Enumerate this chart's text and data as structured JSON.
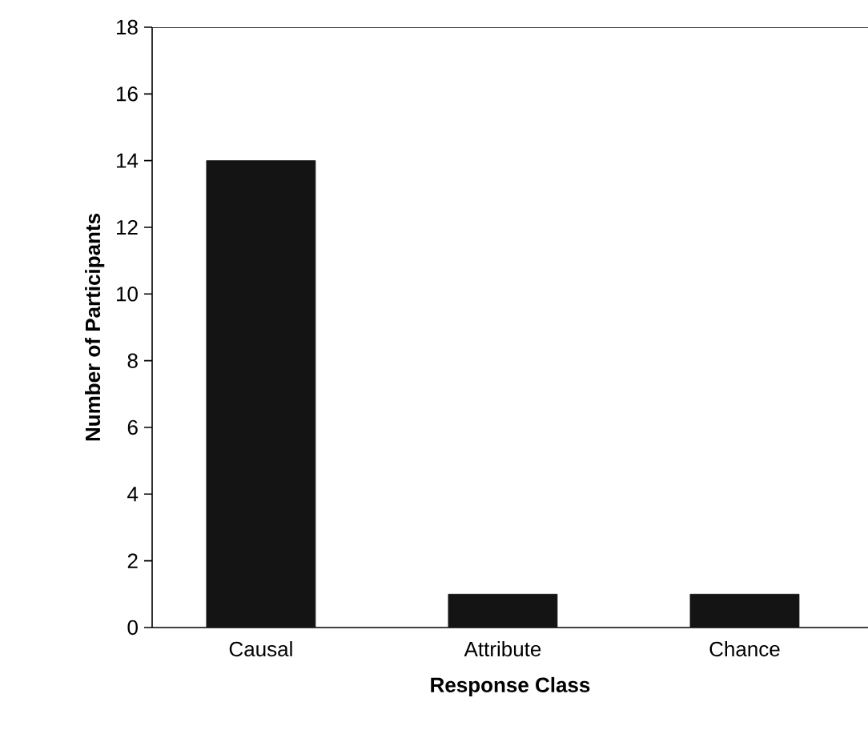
{
  "chart_data": {
    "type": "bar",
    "xlabel": "Response Class",
    "ylabel": "Number of Participants",
    "categories": [
      "Causal",
      "Attribute",
      "Chance"
    ],
    "values": [
      14,
      1,
      1
    ],
    "color": "#141414",
    "ylim": [
      0,
      18
    ],
    "yticks": [
      0,
      2,
      4,
      6,
      8,
      10,
      12,
      14,
      16,
      18
    ]
  }
}
